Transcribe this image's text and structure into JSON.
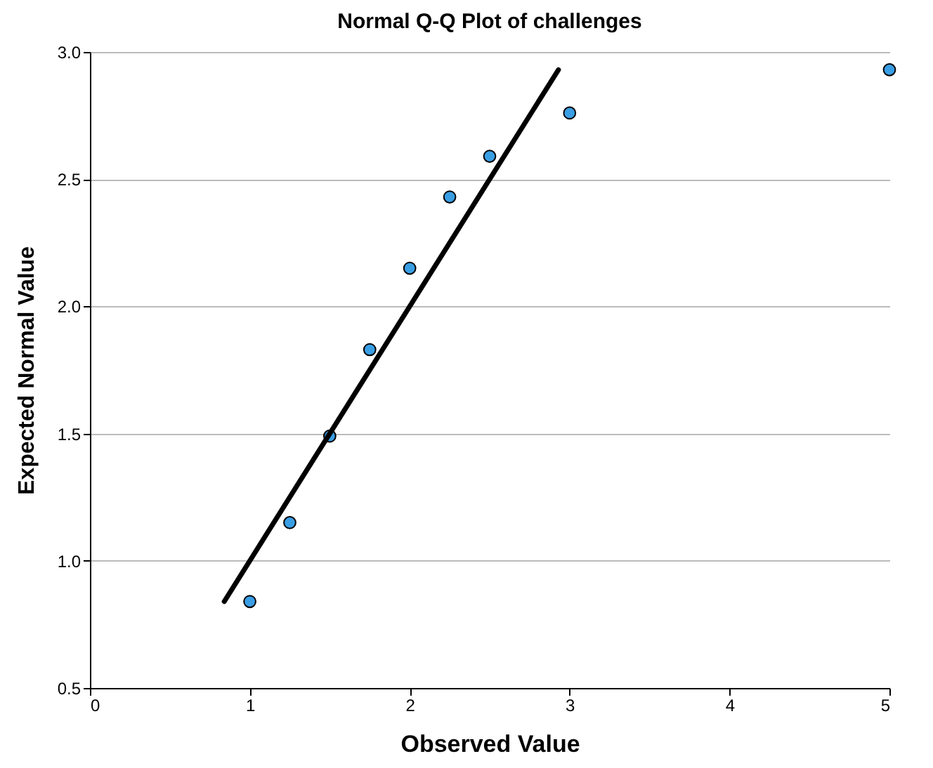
{
  "chart_data": {
    "type": "scatter",
    "title": "Normal Q-Q Plot of challenges",
    "xlabel": "Observed Value",
    "ylabel": "Expected Normal Value",
    "series": [
      {
        "color": "#3a9ee4",
        "marker": "circle",
        "x": [
          1,
          1.25,
          1.5,
          1.75,
          2,
          2.25,
          2.5,
          3,
          5
        ],
        "values": [
          0.84,
          1.15,
          1.49,
          1.83,
          2.15,
          2.43,
          2.59,
          2.76,
          2.93
        ]
      },
      {
        "type": "line",
        "marker": "none",
        "color": "#000000",
        "x": [
          0.84,
          2.93
        ],
        "values": [
          0.84,
          2.93
        ]
      }
    ],
    "xlim": [
      0,
      5
    ],
    "xticks": [
      0,
      1,
      2,
      3,
      4,
      5
    ],
    "ylim": [
      0.5,
      3
    ],
    "yticks": [
      {
        "value": 0.5,
        "label": "0.5"
      },
      {
        "value": 1,
        "label": "1.0"
      },
      {
        "value": 1.5,
        "label": "1.5"
      },
      {
        "value": 2,
        "label": "2.0"
      },
      {
        "value": 2.5,
        "label": "2.5"
      },
      {
        "value": 3,
        "label": "3.0"
      }
    ],
    "grid": "y",
    "line_style": "solid"
  }
}
